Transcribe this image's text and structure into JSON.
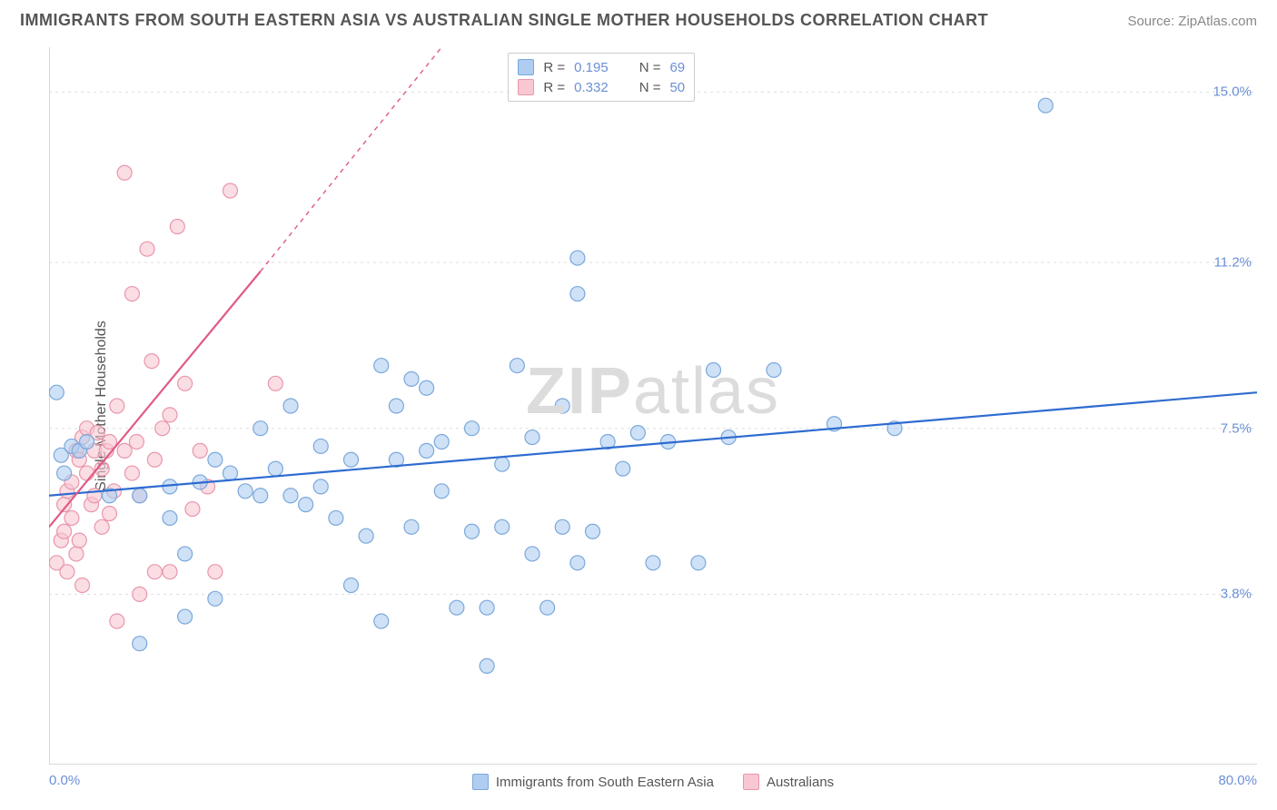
{
  "title": "IMMIGRANTS FROM SOUTH EASTERN ASIA VS AUSTRALIAN SINGLE MOTHER HOUSEHOLDS CORRELATION CHART",
  "source": "Source: ZipAtlas.com",
  "watermark": {
    "a": "ZIP",
    "b": "atlas"
  },
  "chart": {
    "type": "scatter",
    "background_color": "#ffffff",
    "grid_color": "#dddddd",
    "axis_color": "#cccccc",
    "text_color": "#555555",
    "value_color": "#6b8fd6",
    "marker_radius": 8,
    "marker_stroke_width": 1.2,
    "trend_line_width": 2.2,
    "xlim": [
      0,
      80
    ],
    "ylim": [
      0,
      16
    ],
    "xtick_positions": [
      0,
      10,
      20,
      30,
      40,
      50,
      60,
      70,
      80
    ],
    "xlabel_min": "0.0%",
    "xlabel_max": "80.0%",
    "ylabel": "Single Mother Households",
    "ygrid": [
      {
        "val": 3.8,
        "label": "3.8%"
      },
      {
        "val": 7.5,
        "label": "7.5%"
      },
      {
        "val": 11.2,
        "label": "11.2%"
      },
      {
        "val": 15.0,
        "label": "15.0%"
      }
    ],
    "series": [
      {
        "name": "Immigrants from South Eastern Asia",
        "color_fill": "#aecdf0",
        "color_stroke": "#7ba8db",
        "trend_color": "#2e6bd1",
        "R": "0.195",
        "N": "69",
        "trend": {
          "x1": 0,
          "y1": 6.0,
          "x2": 80,
          "y2": 8.3
        },
        "points": [
          [
            0.5,
            8.3
          ],
          [
            0.8,
            6.9
          ],
          [
            1.5,
            7.1
          ],
          [
            1.0,
            6.5
          ],
          [
            2.0,
            7.0
          ],
          [
            2.5,
            7.2
          ],
          [
            66,
            14.7
          ],
          [
            35,
            11.3
          ],
          [
            35,
            10.5
          ],
          [
            31,
            8.9
          ],
          [
            34,
            8.0
          ],
          [
            44,
            8.8
          ],
          [
            8,
            6.2
          ],
          [
            10,
            6.3
          ],
          [
            11,
            6.8
          ],
          [
            12,
            6.5
          ],
          [
            13,
            6.1
          ],
          [
            14,
            7.5
          ],
          [
            14,
            6.0
          ],
          [
            16,
            6.0
          ],
          [
            16,
            8.0
          ],
          [
            18,
            7.1
          ],
          [
            18,
            6.2
          ],
          [
            19,
            5.5
          ],
          [
            20,
            4.0
          ],
          [
            20,
            6.8
          ],
          [
            21,
            5.1
          ],
          [
            22,
            8.9
          ],
          [
            22,
            3.2
          ],
          [
            23,
            8.0
          ],
          [
            23,
            6.8
          ],
          [
            24,
            8.6
          ],
          [
            24,
            5.3
          ],
          [
            25,
            7.0
          ],
          [
            25,
            8.4
          ],
          [
            26,
            7.2
          ],
          [
            26,
            6.1
          ],
          [
            27,
            3.5
          ],
          [
            28,
            7.5
          ],
          [
            28,
            5.2
          ],
          [
            29,
            3.5
          ],
          [
            29,
            2.2
          ],
          [
            30,
            6.7
          ],
          [
            30,
            5.3
          ],
          [
            32,
            7.3
          ],
          [
            32,
            4.7
          ],
          [
            33,
            3.5
          ],
          [
            34,
            5.3
          ],
          [
            35,
            4.5
          ],
          [
            36,
            5.2
          ],
          [
            37,
            7.2
          ],
          [
            38,
            6.6
          ],
          [
            39,
            7.4
          ],
          [
            40,
            4.5
          ],
          [
            41,
            7.2
          ],
          [
            43,
            4.5
          ],
          [
            45,
            7.3
          ],
          [
            48,
            8.8
          ],
          [
            52,
            7.6
          ],
          [
            56,
            7.5
          ],
          [
            9,
            4.7
          ],
          [
            9,
            3.3
          ],
          [
            11,
            3.7
          ],
          [
            6,
            2.7
          ],
          [
            4,
            6.0
          ],
          [
            6,
            6.0
          ],
          [
            8,
            5.5
          ],
          [
            15,
            6.6
          ],
          [
            17,
            5.8
          ]
        ]
      },
      {
        "name": "Australians",
        "color_fill": "#f9c7d2",
        "color_stroke": "#e996ab",
        "trend_color": "#e05a84",
        "R": "0.332",
        "N": "50",
        "trend": {
          "x1": 0,
          "y1": 5.3,
          "x2": 14,
          "y2": 11.0
        },
        "trend_dashed_ext": {
          "x1": 14,
          "y1": 11.0,
          "x2": 26,
          "y2": 16.0
        },
        "points": [
          [
            0.5,
            4.5
          ],
          [
            0.8,
            5.0
          ],
          [
            1.0,
            5.2
          ],
          [
            1.0,
            5.8
          ],
          [
            1.2,
            4.3
          ],
          [
            1.2,
            6.1
          ],
          [
            1.5,
            5.5
          ],
          [
            1.5,
            6.3
          ],
          [
            1.8,
            4.7
          ],
          [
            1.8,
            7.0
          ],
          [
            2.0,
            5.0
          ],
          [
            2.0,
            6.8
          ],
          [
            2.2,
            7.3
          ],
          [
            2.2,
            4.0
          ],
          [
            2.5,
            6.5
          ],
          [
            2.5,
            7.5
          ],
          [
            2.8,
            5.8
          ],
          [
            3.0,
            6.0
          ],
          [
            3.0,
            7.0
          ],
          [
            3.2,
            7.4
          ],
          [
            3.5,
            5.3
          ],
          [
            3.5,
            6.6
          ],
          [
            3.8,
            7.0
          ],
          [
            4.0,
            7.2
          ],
          [
            4.0,
            5.6
          ],
          [
            4.3,
            6.1
          ],
          [
            4.5,
            8.0
          ],
          [
            4.5,
            3.2
          ],
          [
            5.0,
            13.2
          ],
          [
            5.0,
            7.0
          ],
          [
            5.5,
            6.5
          ],
          [
            5.5,
            10.5
          ],
          [
            5.8,
            7.2
          ],
          [
            6.0,
            6.0
          ],
          [
            6.0,
            3.8
          ],
          [
            6.5,
            11.5
          ],
          [
            6.8,
            9.0
          ],
          [
            7.0,
            4.3
          ],
          [
            7.0,
            6.8
          ],
          [
            7.5,
            7.5
          ],
          [
            8.0,
            4.3
          ],
          [
            8.0,
            7.8
          ],
          [
            8.5,
            12.0
          ],
          [
            9.0,
            8.5
          ],
          [
            9.5,
            5.7
          ],
          [
            10.0,
            7.0
          ],
          [
            10.5,
            6.2
          ],
          [
            11.0,
            4.3
          ],
          [
            12.0,
            12.8
          ],
          [
            15.0,
            8.5
          ]
        ]
      }
    ]
  }
}
